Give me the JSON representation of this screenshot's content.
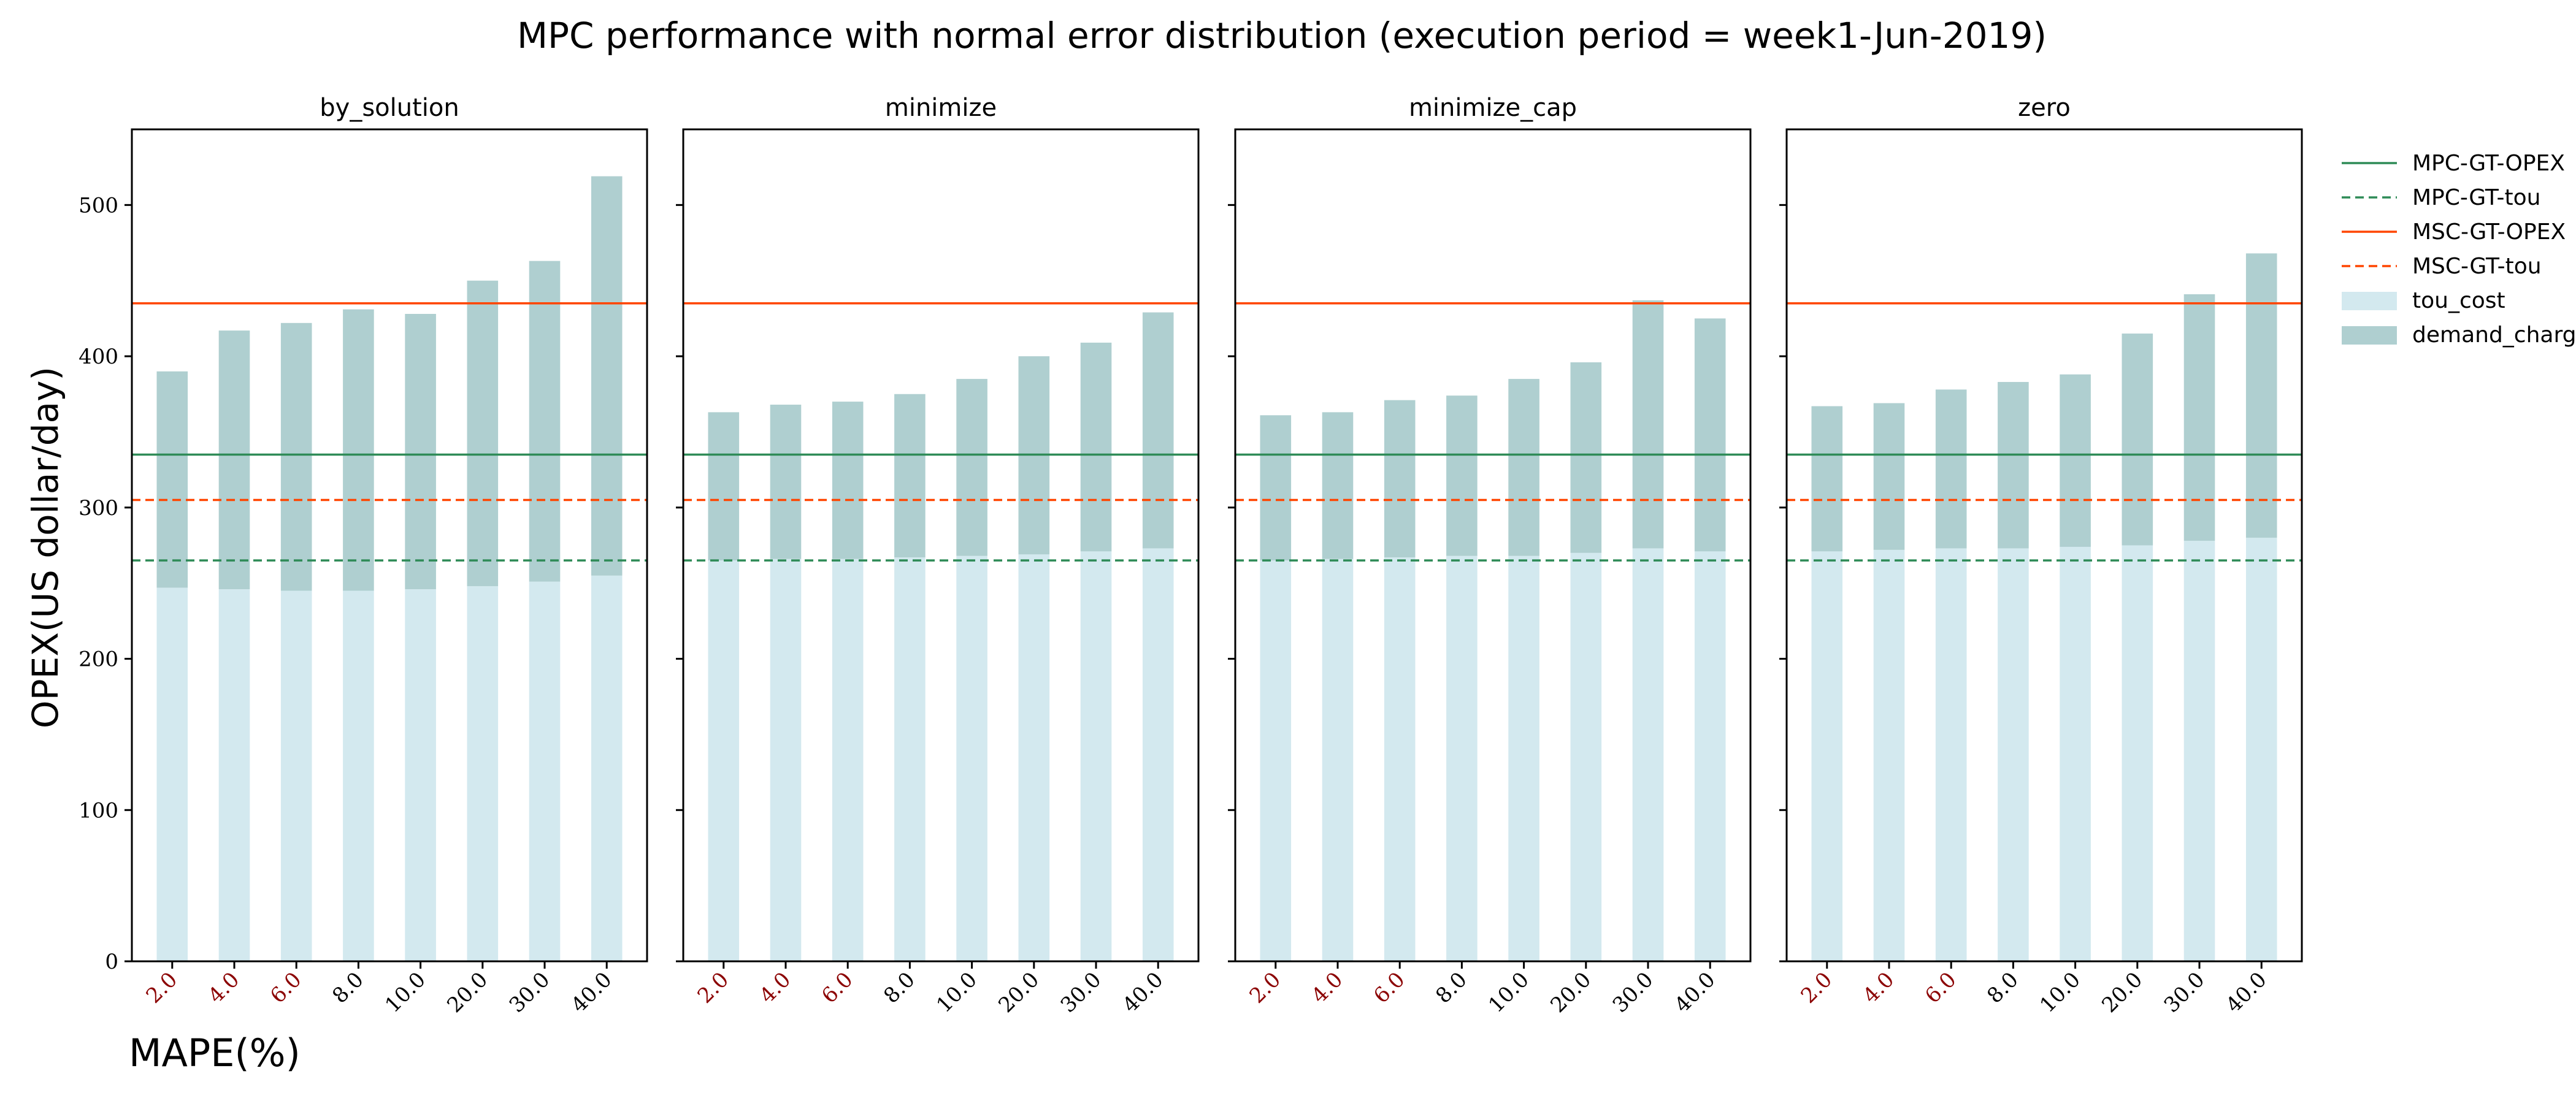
{
  "chart_data": {
    "type": "bar",
    "stacked": true,
    "title": "MPC performance with normal error distribution (execution period = week1-Jun-2019)",
    "ylabel": "OPEX(US dollar/day)",
    "xlabel": "MAPE(%)",
    "ylim": [
      0,
      550
    ],
    "yticks": [
      0,
      100,
      200,
      300,
      400,
      500
    ],
    "categories": [
      "2.0",
      "4.0",
      "6.0",
      "8.0",
      "10.0",
      "20.0",
      "30.0",
      "40.0"
    ],
    "highlighted_categories": [
      "2.0",
      "4.0",
      "6.0"
    ],
    "colors": {
      "tou_cost": "#d3e9ef",
      "demand_charge": "#afcfd0",
      "mpc_gt_opex": "#2e8b57",
      "mpc_gt_tou": "#2e8b57",
      "msc_gt_opex": "#ff4500",
      "msc_gt_tou": "#ff4500",
      "highlight_tick": "#8b0000"
    },
    "reference_lines": [
      {
        "name": "MPC-GT-OPEX",
        "value": 335,
        "style": "solid",
        "color": "#2e8b57"
      },
      {
        "name": "MPC-GT-tou",
        "value": 265,
        "style": "dashed",
        "color": "#2e8b57"
      },
      {
        "name": "MSC-GT-OPEX",
        "value": 435,
        "style": "solid",
        "color": "#ff4500"
      },
      {
        "name": "MSC-GT-tou",
        "value": 305,
        "style": "dashed",
        "color": "#ff4500"
      }
    ],
    "legend": {
      "placement": "outside-right",
      "entries": [
        "MPC-GT-OPEX",
        "MPC-GT-tou",
        "MSC-GT-OPEX",
        "MSC-GT-tou",
        "tou_cost",
        "demand_charge"
      ]
    },
    "panels": [
      {
        "title": "by_solution",
        "series": [
          {
            "name": "tou_cost",
            "values": [
              247,
              246,
              245,
              245,
              246,
              248,
              251,
              255
            ]
          },
          {
            "name": "demand_charge",
            "values": [
              143,
              171,
              177,
              186,
              182,
              202,
              212,
              264
            ]
          }
        ]
      },
      {
        "title": "minimize",
        "series": [
          {
            "name": "tou_cost",
            "values": [
              265,
              266,
              266,
              267,
              268,
              269,
              271,
              273
            ]
          },
          {
            "name": "demand_charge",
            "values": [
              98,
              102,
              104,
              108,
              117,
              131,
              138,
              156
            ]
          }
        ]
      },
      {
        "title": "minimize_cap",
        "series": [
          {
            "name": "tou_cost",
            "values": [
              265,
              266,
              267,
              268,
              268,
              270,
              273,
              271
            ]
          },
          {
            "name": "demand_charge",
            "values": [
              96,
              97,
              104,
              106,
              117,
              126,
              164,
              154
            ]
          }
        ]
      },
      {
        "title": "zero",
        "series": [
          {
            "name": "tou_cost",
            "values": [
              271,
              272,
              273,
              273,
              274,
              275,
              278,
              280
            ]
          },
          {
            "name": "demand_charge",
            "values": [
              96,
              97,
              105,
              110,
              114,
              140,
              163,
              188
            ]
          }
        ]
      }
    ]
  }
}
